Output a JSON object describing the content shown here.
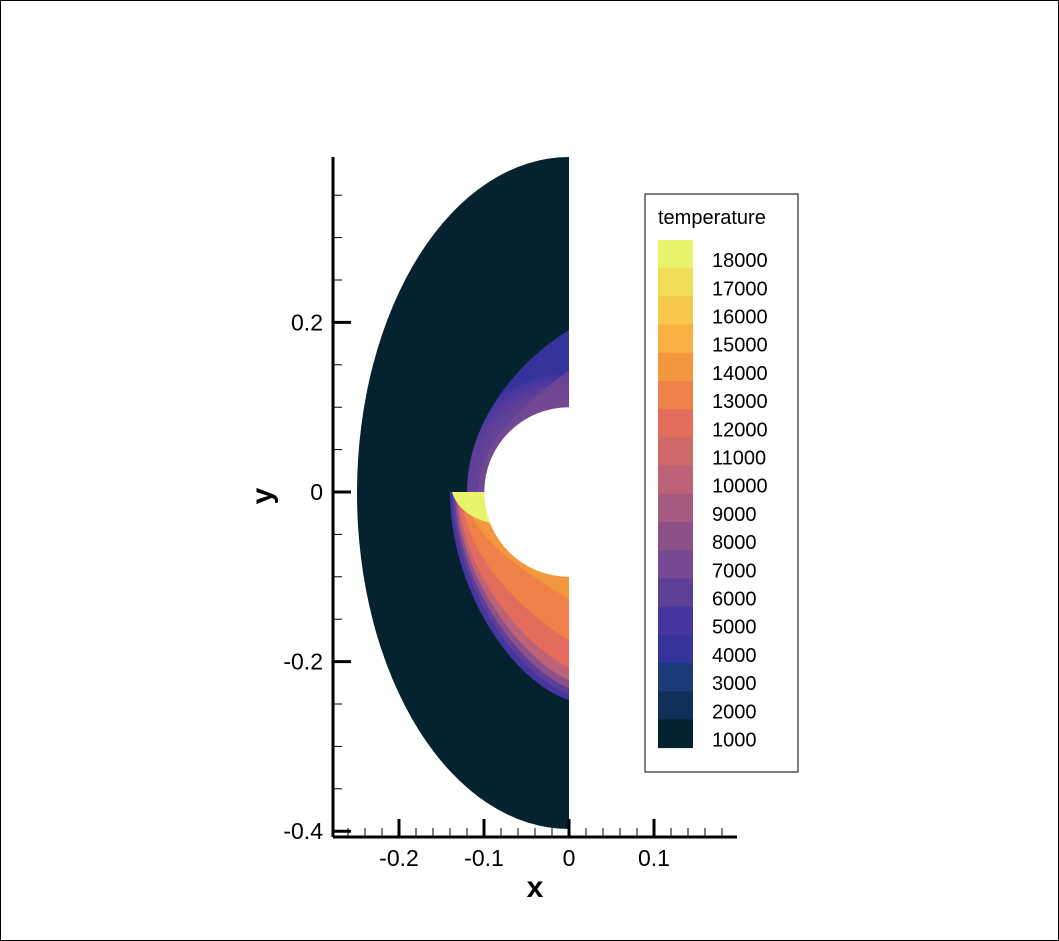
{
  "chart_data": {
    "type": "contour",
    "title": "",
    "xlabel": "x",
    "ylabel": "y",
    "xlim": [
      -0.28,
      0.2
    ],
    "ylim": [
      -0.4,
      0.39
    ],
    "x_ticks": [
      {
        "value": -0.2,
        "label": "-0.2"
      },
      {
        "value": -0.1,
        "label": "-0.1"
      },
      {
        "value": 0,
        "label": "0"
      },
      {
        "value": 0.1,
        "label": "0.1"
      }
    ],
    "y_ticks": [
      {
        "value": 0.2,
        "label": "0.2"
      },
      {
        "value": 0,
        "label": "0"
      },
      {
        "value": -0.2,
        "label": "-0.2"
      },
      {
        "value": -0.4,
        "label": "-0.4"
      }
    ],
    "legend": {
      "title": "temperature",
      "placement": "right",
      "levels": [
        {
          "value": 18000,
          "label": "18000",
          "color": "#e8f26a"
        },
        {
          "value": 17000,
          "label": "17000",
          "color": "#f0dc55"
        },
        {
          "value": 16000,
          "label": "16000",
          "color": "#f6c84c"
        },
        {
          "value": 15000,
          "label": "15000",
          "color": "#f8b040"
        },
        {
          "value": 14000,
          "label": "14000",
          "color": "#f3973e"
        },
        {
          "value": 13000,
          "label": "13000",
          "color": "#ee8148"
        },
        {
          "value": 12000,
          "label": "12000",
          "color": "#e26d5c"
        },
        {
          "value": 11000,
          "label": "11000",
          "color": "#cf6a6a"
        },
        {
          "value": 10000,
          "label": "10000",
          "color": "#be6278"
        },
        {
          "value": 9000,
          "label": "9000",
          "color": "#a65a82"
        },
        {
          "value": 8000,
          "label": "8000",
          "color": "#8d518a"
        },
        {
          "value": 7000,
          "label": "7000",
          "color": "#764a92"
        },
        {
          "value": 6000,
          "label": "6000",
          "color": "#5e3f98"
        },
        {
          "value": 5000,
          "label": "5000",
          "color": "#4836a0"
        },
        {
          "value": 4000,
          "label": "4000",
          "color": "#35349c"
        },
        {
          "value": 3000,
          "label": "3000",
          "color": "#1b3a78"
        },
        {
          "value": 2000,
          "label": "2000",
          "color": "#0f2f58"
        },
        {
          "value": 1000,
          "label": "1000",
          "color": "#05232f"
        }
      ]
    },
    "geometry": {
      "body_radius": 0.1,
      "outer_domain_radius": 0.4,
      "upper_shock_standoff": -0.12,
      "lower_shock_standoff": -0.14,
      "upper_half_peak_temperature": 6500,
      "lower_half_peak_temperature": 18000
    }
  }
}
